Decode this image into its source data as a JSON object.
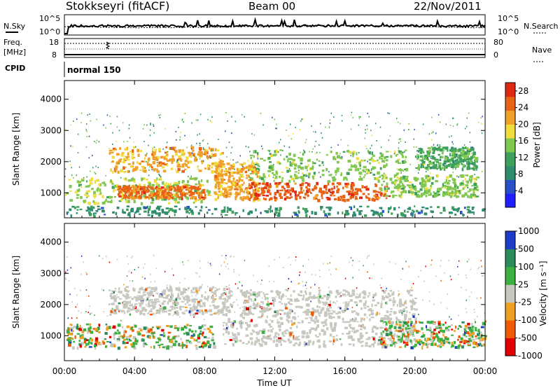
{
  "header": {
    "station": "Stokkseyri (fitACF)",
    "beam": "Beam 00",
    "date": "22/Nov/2011"
  },
  "noise_panel": {
    "left_label": "N.Sky",
    "right_label": "N.Search",
    "ticks": [
      "10^5",
      "10^0"
    ],
    "right_ticks": [
      "10^5",
      "10^0"
    ]
  },
  "freq_panel": {
    "left_label_line1": "Freq.",
    "left_label_line2": "[MHz]",
    "left_ticks": [
      "18",
      "8"
    ],
    "right_label": "Nave",
    "right_ticks": [
      "80",
      "0"
    ]
  },
  "cpid": {
    "label": "CPID",
    "value": "normal 150"
  },
  "colors": {
    "power": [
      "#1e1eff",
      "#2850c8",
      "#2f8c6e",
      "#3ea05a",
      "#80c850",
      "#f0dc3c",
      "#f0a028",
      "#e86414",
      "#e02814"
    ],
    "velocity": [
      "#e00000",
      "#f05a00",
      "#f0a020",
      "#c8c8c0",
      "#3cb040",
      "#2a8c5a",
      "#1e3cc8"
    ]
  },
  "chart_data": [
    {
      "type": "heatmap",
      "panel": "power",
      "ylabel": "Slant Range [km]",
      "yticks": [
        "1000",
        "2000",
        "3000",
        "4000"
      ],
      "ylim": [
        200,
        4600
      ],
      "colorbar_label": "Power [dB]",
      "colorbar_ticks": [
        "4",
        "8",
        "12",
        "16",
        "20",
        "24",
        "28"
      ],
      "colorbar_range": [
        0,
        30
      ],
      "bands": [
        {
          "t0": 0.0,
          "t1": 8.2,
          "r0": 700,
          "r1": 1500,
          "level": 16
        },
        {
          "t0": 3.0,
          "t1": 8.0,
          "r0": 850,
          "r1": 1250,
          "level": 26
        },
        {
          "t0": 2.5,
          "t1": 9.0,
          "r0": 1700,
          "r1": 2500,
          "level": 22
        },
        {
          "t0": 8.5,
          "t1": 11.0,
          "r0": 800,
          "r1": 2000,
          "level": 22
        },
        {
          "t0": 10.5,
          "t1": 18.5,
          "r0": 800,
          "r1": 1350,
          "level": 27
        },
        {
          "t0": 10.5,
          "t1": 19.5,
          "r0": 1400,
          "r1": 2400,
          "level": 15
        },
        {
          "t0": 18.0,
          "t1": 23.5,
          "r0": 900,
          "r1": 1600,
          "level": 15
        },
        {
          "t0": 20.0,
          "t1": 23.5,
          "r0": 1800,
          "r1": 2500,
          "level": 12
        },
        {
          "t0": 0.0,
          "t1": 24.0,
          "r0": 300,
          "r1": 600,
          "level": 8
        }
      ]
    },
    {
      "type": "heatmap",
      "panel": "velocity",
      "ylabel": "Slant Range [km]",
      "yticks": [
        "1000",
        "2000",
        "3000",
        "4000"
      ],
      "ylim": [
        200,
        4600
      ],
      "xlabel": "Time UT",
      "xticks": [
        "00:00",
        "04:00",
        "08:00",
        "12:00",
        "16:00",
        "20:00",
        "00:00"
      ],
      "xlim_hours": [
        0,
        24
      ],
      "colorbar_label": "Velocity [m s⁻¹]",
      "colorbar_ticks": [
        "1000",
        "500",
        "100",
        "25",
        "-25",
        "-100",
        "-500",
        "-1000"
      ],
      "bands": [
        {
          "t0": 0.0,
          "t1": 8.5,
          "r0": 650,
          "r1": 1400,
          "class": "mixed"
        },
        {
          "t0": 2.5,
          "t1": 9.5,
          "r0": 1700,
          "r1": 2600,
          "class": "ground"
        },
        {
          "t0": 9.0,
          "t1": 20.0,
          "r0": 700,
          "r1": 1600,
          "class": "ground"
        },
        {
          "t0": 10.0,
          "t1": 20.0,
          "r0": 1600,
          "r1": 2500,
          "class": "ground"
        },
        {
          "t0": 18.0,
          "t1": 24.0,
          "r0": 650,
          "r1": 1500,
          "class": "mixed"
        }
      ]
    }
  ],
  "xaxis": {
    "label": "Time UT",
    "ticks": [
      "00:00",
      "04:00",
      "08:00",
      "12:00",
      "16:00",
      "20:00",
      "00:00"
    ]
  }
}
